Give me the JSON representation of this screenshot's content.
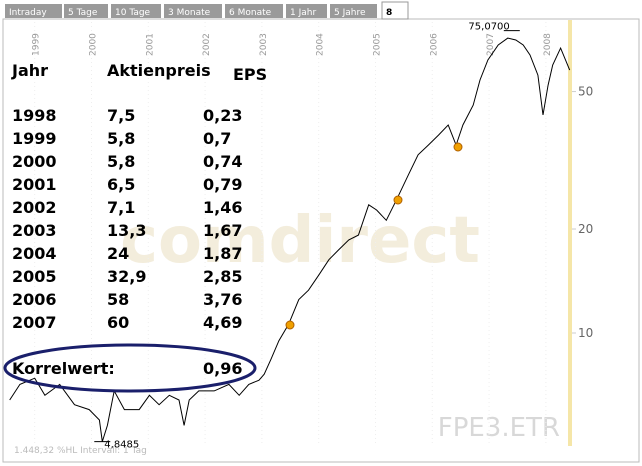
{
  "tabs": [
    "Intraday",
    "5 Tage",
    "10 Tage",
    "3 Monate",
    "6 Monate",
    "1 Jahr",
    "5 Jahre",
    "8"
  ],
  "table": {
    "header": [
      "Jahr",
      "Aktienpreis",
      "EPS"
    ],
    "rows": [
      [
        "1998",
        "7,5",
        "0,23"
      ],
      [
        "1999",
        "5,8",
        "0,7"
      ],
      [
        "2000",
        "5,8",
        "0,74"
      ],
      [
        "2001",
        "6,5",
        "0,79"
      ],
      [
        "2002",
        "7,1",
        "1,46"
      ],
      [
        "2003",
        "13,3",
        "1,67"
      ],
      [
        "2004",
        "24",
        "1,87"
      ],
      [
        "2005",
        "32,9",
        "2,85"
      ],
      [
        "2006",
        "58",
        "3,76"
      ],
      [
        "2007",
        "60",
        "4,69"
      ]
    ],
    "footer": [
      "Korrelwert:",
      "0,96"
    ]
  },
  "chart_data": {
    "type": "line",
    "title": "FPE3.ETR",
    "watermark": "comdirect",
    "subtitle": "1.448,32 %HL Intervall: 1 Tag",
    "annotations": [
      {
        "text": "75,0700",
        "x": 2007.4,
        "y": 75.07
      },
      {
        "text": "4,8485",
        "x": 2000.19,
        "y": 4.8485
      }
    ],
    "x": [
      1998.56,
      1998.74,
      1999,
      1999.18,
      1999.44,
      1999.7,
      1999.96,
      2000.14,
      2000.19,
      2000.28,
      2000.4,
      2000.58,
      2000.84,
      2001.02,
      2001.19,
      2001.37,
      2001.54,
      2001.63,
      2001.72,
      2001.89,
      2002.16,
      2002.42,
      2002.6,
      2002.77,
      2002.95,
      2003.04,
      2003.16,
      2003.3,
      2003.47,
      2003.65,
      2003.82,
      2004,
      2004.18,
      2004.35,
      2004.53,
      2004.7,
      2004.88,
      2005.02,
      2005.19,
      2005.37,
      2005.58,
      2005.75,
      2005.93,
      2006.11,
      2006.28,
      2006.42,
      2006.54,
      2006.72,
      2006.84,
      2006.98,
      2007.16,
      2007.33,
      2007.47,
      2007.6,
      2007.72,
      2007.86,
      2007.95,
      2008.04,
      2008.12,
      2008.26,
      2008.42
    ],
    "values": [
      6.4,
      7.1,
      7.4,
      6.6,
      7.1,
      6.2,
      6.0,
      5.6,
      4.85,
      5.4,
      6.8,
      6.0,
      6.0,
      6.6,
      6.2,
      6.6,
      6.4,
      5.4,
      6.4,
      6.8,
      6.8,
      7.1,
      6.6,
      7.1,
      7.3,
      7.6,
      8.4,
      9.5,
      10.6,
      12.5,
      13.3,
      14.7,
      16.3,
      17.4,
      18.6,
      19.2,
      23.5,
      22.7,
      21.2,
      24.3,
      28.7,
      32.8,
      35,
      37.4,
      40,
      35,
      40,
      45.7,
      54,
      61.7,
      68.2,
      71.4,
      70.5,
      68.2,
      63.8,
      55.8,
      42.8,
      52.2,
      59.7,
      66.8,
      57.7
    ],
    "color": "#000000",
    "xlim": [
      1998.53,
      2008.46
    ],
    "xticks": [
      1999,
      2000,
      2001,
      2002,
      2003,
      2004,
      2005,
      2006,
      2007,
      2008
    ],
    "ylim": [
      4.74,
      79.5
    ],
    "yticks": [
      10,
      20,
      50
    ],
    "log_y": true
  }
}
